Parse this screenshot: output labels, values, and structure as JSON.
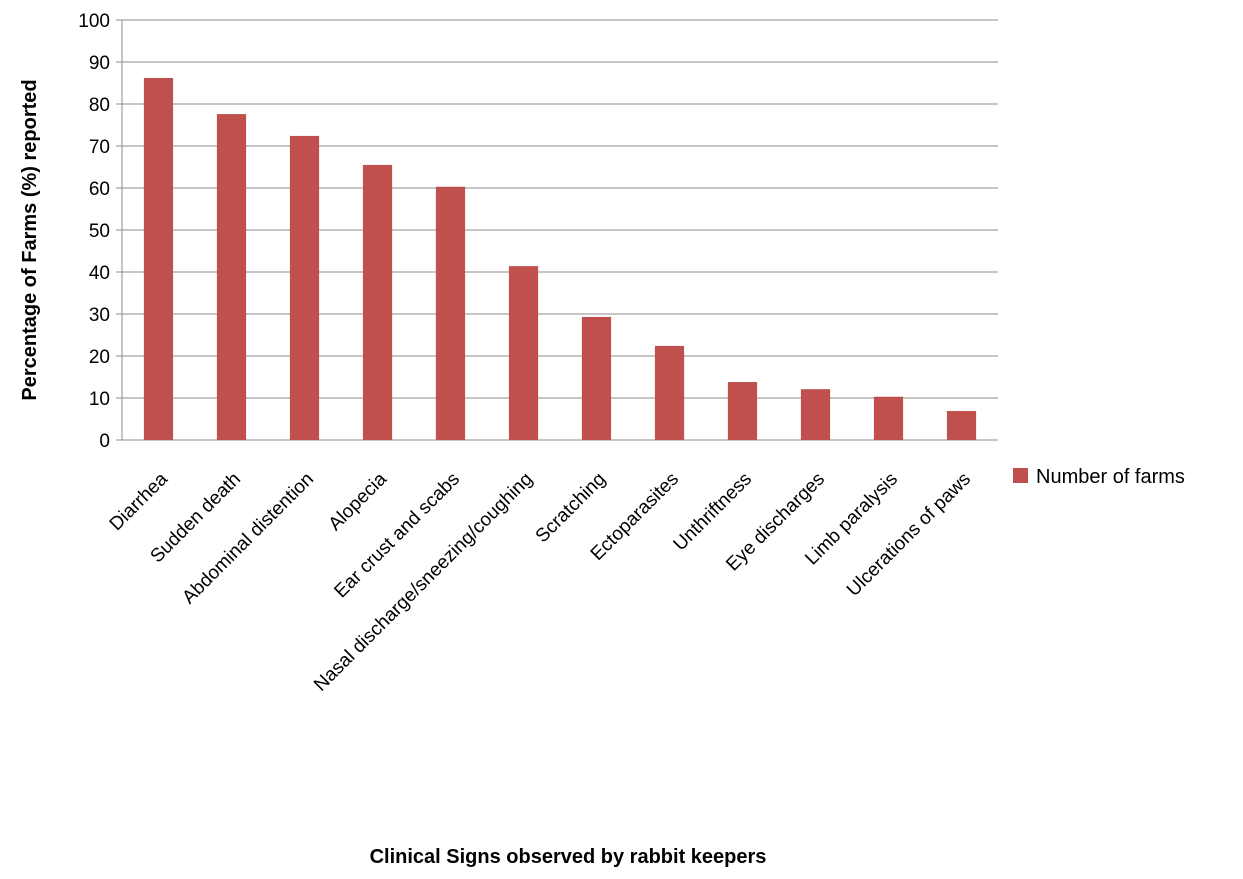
{
  "chart_data": {
    "type": "bar",
    "title": "",
    "xlabel": "Clinical Signs observed by rabbit keepers",
    "ylabel": "Percentage of Farms (%)  reported",
    "ylim": [
      0,
      100
    ],
    "ytick_step": 10,
    "yticks": [
      "0",
      "10",
      "20",
      "30",
      "40",
      "50",
      "60",
      "70",
      "80",
      "90",
      "100"
    ],
    "grid": true,
    "legend_position": "right",
    "bar_color": "#C0504D",
    "categories": [
      "Diarrhea",
      "Sudden death",
      "Abdominal distention",
      "Alopecia",
      "Ear crust and scabs",
      "Nasal discharge/sneezing/coughing",
      "Scratching",
      "Ectoparasites",
      "Unthriftness",
      "Eye discharges",
      "Limb paralysis",
      "Ulcerations of paws"
    ],
    "series": [
      {
        "name": "Number of farms",
        "values": [
          86.2,
          77.6,
          72.4,
          65.5,
          60.3,
          41.4,
          29.3,
          22.4,
          13.8,
          12.1,
          10.3,
          6.9
        ]
      }
    ]
  }
}
